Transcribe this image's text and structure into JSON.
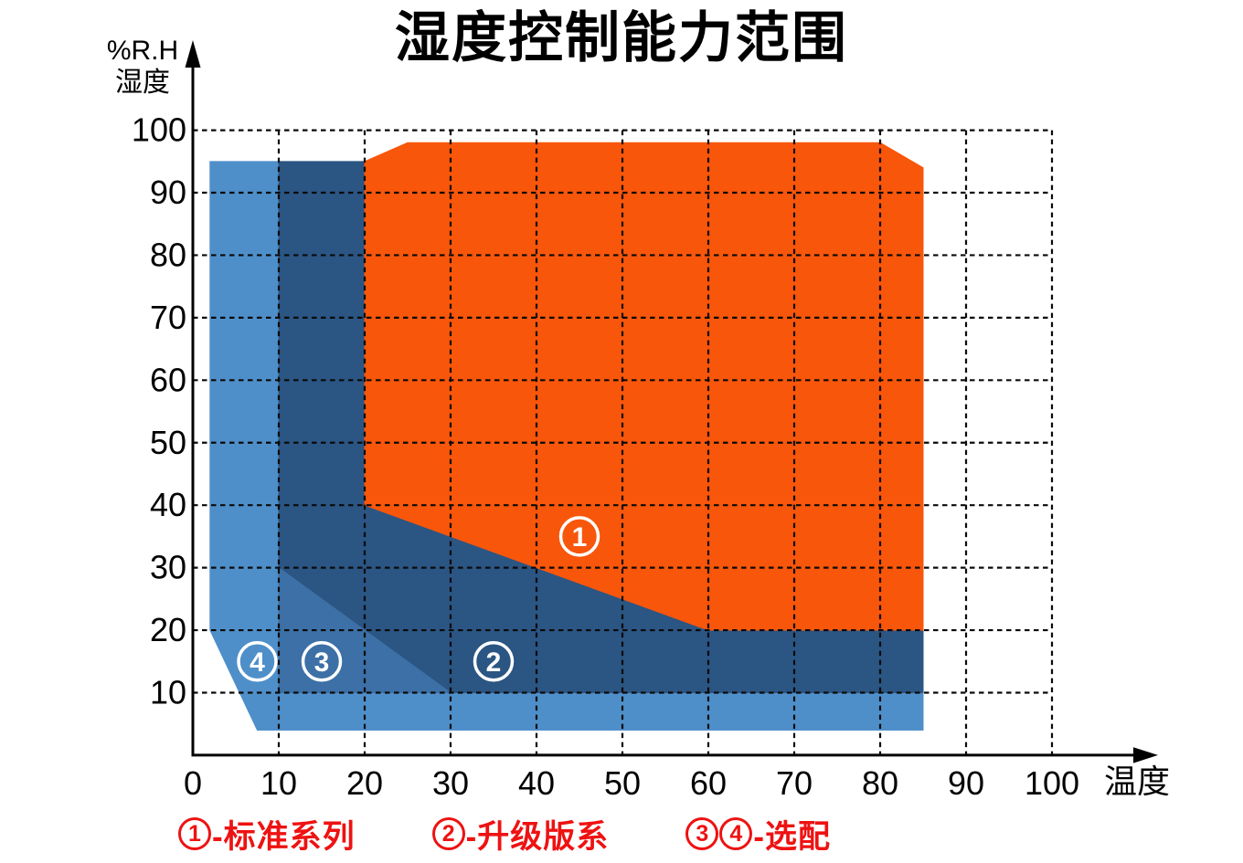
{
  "title": "湿度控制能力范围",
  "background": "#FFFFFF",
  "chart_data": {
    "type": "area",
    "title": "湿度控制能力范围",
    "xlabel": "温度",
    "ylabel_line1": "%R.H",
    "ylabel_line2": "湿度",
    "x_ticks": [
      0,
      10,
      20,
      30,
      40,
      50,
      60,
      70,
      80,
      90,
      100
    ],
    "y_ticks": [
      10,
      20,
      30,
      40,
      50,
      60,
      70,
      80,
      90,
      100
    ],
    "xlim": [
      0,
      105
    ],
    "ylim": [
      0,
      103
    ],
    "grid": "dashed",
    "grid_color": "#0B0B0B",
    "axis_color": "#000000",
    "regions": [
      {
        "id": "4",
        "name": "optional-light-blue",
        "color": "#4F8FC9",
        "points": [
          [
            2,
            95
          ],
          [
            10,
            95
          ],
          [
            10,
            10
          ],
          [
            85,
            10
          ],
          [
            85,
            4
          ],
          [
            7.5,
            4
          ],
          [
            2,
            20
          ]
        ]
      },
      {
        "id": "2",
        "name": "upgrade-navy",
        "color": "#2B5583",
        "points": [
          [
            10,
            95
          ],
          [
            20,
            95
          ],
          [
            20,
            40
          ],
          [
            60,
            20
          ],
          [
            85,
            20
          ],
          [
            85,
            10
          ],
          [
            30,
            10
          ],
          [
            10,
            30
          ]
        ]
      },
      {
        "id": "3",
        "name": "optional-medium-blue",
        "color": "#3C70A6",
        "points": [
          [
            10,
            30
          ],
          [
            30,
            10
          ],
          [
            10,
            10
          ]
        ]
      },
      {
        "id": "1",
        "name": "standard-orange",
        "color": "#F8560B",
        "points": [
          [
            20,
            95
          ],
          [
            25,
            98
          ],
          [
            80,
            98
          ],
          [
            85,
            94
          ],
          [
            85,
            20
          ],
          [
            60,
            20
          ],
          [
            20,
            40
          ]
        ]
      }
    ],
    "region_labels": [
      {
        "symbol": "1",
        "x": 45,
        "y": 35,
        "color": "#FFFFFF"
      },
      {
        "symbol": "2",
        "x": 35,
        "y": 15,
        "color": "#FFFFFF"
      },
      {
        "symbol": "3",
        "x": 15,
        "y": 15,
        "color": "#FFFFFF"
      },
      {
        "symbol": "4",
        "x": 7.5,
        "y": 15,
        "color": "#FFFFFF"
      }
    ]
  },
  "legend": {
    "color": "#EE1212",
    "items": [
      {
        "symbols": [
          "1"
        ],
        "label": "-标准系列"
      },
      {
        "symbols": [
          "2"
        ],
        "label": "-升级版系"
      },
      {
        "symbols": [
          "3",
          "4"
        ],
        "label": "-选配"
      }
    ]
  }
}
